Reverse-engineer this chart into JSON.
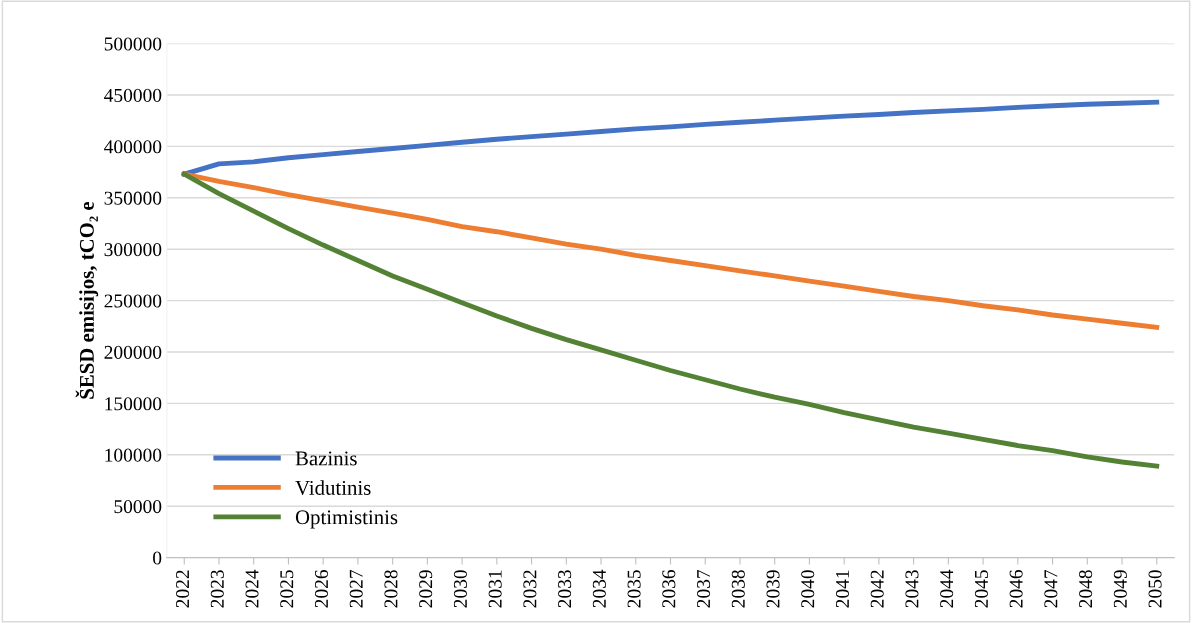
{
  "chart_data": {
    "type": "line",
    "ylabel": "ŠESD emisijos, tCO₂ e",
    "categories": [
      "2022",
      "2023",
      "2024",
      "2025",
      "2026",
      "2027",
      "2028",
      "2029",
      "2030",
      "2031",
      "2032",
      "2033",
      "2034",
      "2035",
      "2036",
      "2037",
      "2038",
      "2039",
      "2040",
      "2041",
      "2042",
      "2043",
      "2044",
      "2045",
      "2046",
      "2047",
      "2048",
      "2049",
      "2050"
    ],
    "series": [
      {
        "name": "Bazinis",
        "color": "#4472c4",
        "values": [
          373000,
          383000,
          385000,
          389000,
          392000,
          395000,
          398000,
          401000,
          404000,
          407000,
          409500,
          412000,
          414500,
          417000,
          419000,
          421500,
          423500,
          425500,
          427500,
          429500,
          431000,
          433000,
          434500,
          436000,
          438000,
          439500,
          441000,
          442000,
          443000
        ]
      },
      {
        "name": "Vidutinis",
        "color": "#ed7d31",
        "values": [
          373000,
          366000,
          360000,
          353000,
          347000,
          341000,
          335000,
          329000,
          322000,
          317000,
          311000,
          305000,
          300000,
          294000,
          289000,
          284000,
          279000,
          274000,
          269000,
          264000,
          259000,
          254000,
          250000,
          245000,
          241000,
          236000,
          232000,
          228000,
          224000
        ]
      },
      {
        "name": "Optimistinis",
        "color": "#548235",
        "values": [
          373000,
          354000,
          337000,
          320000,
          304000,
          289000,
          274000,
          261000,
          248000,
          235000,
          223000,
          212000,
          202000,
          192000,
          182000,
          173000,
          164000,
          156000,
          149000,
          141000,
          134000,
          127000,
          121000,
          115000,
          109000,
          104000,
          98000,
          93000,
          89000
        ]
      }
    ],
    "ylim": [
      0,
      500000
    ],
    "yticks": [
      0,
      50000,
      100000,
      150000,
      200000,
      250000,
      300000,
      350000,
      400000,
      450000,
      500000
    ],
    "grid": "y",
    "legend": "bottom left",
    "marker": "none",
    "line_style": "solid"
  }
}
